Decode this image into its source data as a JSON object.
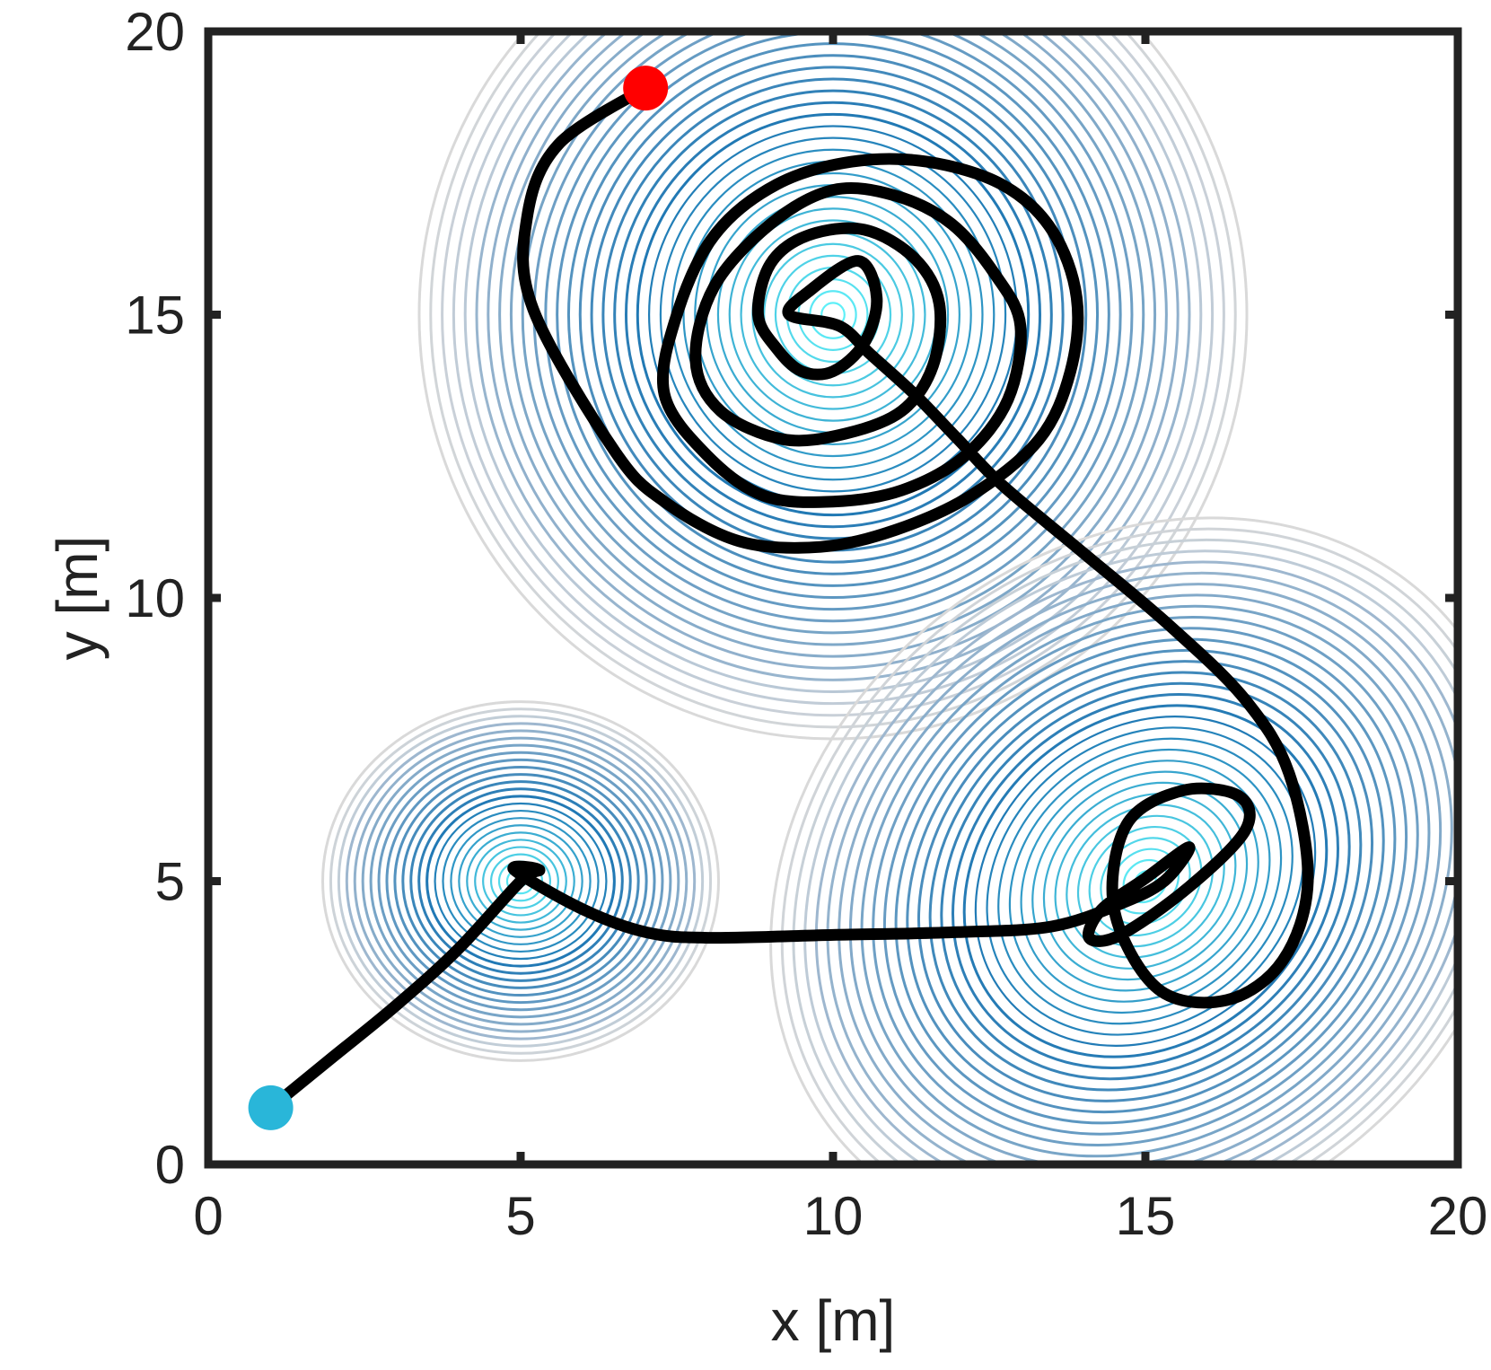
{
  "chart_data": {
    "type": "contour",
    "title": "",
    "xlabel": "x [m]",
    "ylabel": "y [m]",
    "xlim": [
      0,
      20
    ],
    "ylim": [
      0,
      20
    ],
    "x_ticks": [
      "0",
      "5",
      "10",
      "15",
      "20"
    ],
    "y_ticks": [
      "0",
      "5",
      "10",
      "15",
      "20"
    ],
    "grid": false,
    "legend": "none",
    "density_sources": [
      {
        "name": "",
        "center": [
          5,
          5
        ],
        "spread": [
          1.1,
          1.1
        ],
        "correlation": 0,
        "weight": 0.45
      },
      {
        "name": "",
        "center": [
          10,
          15
        ],
        "spread": [
          2.3,
          2.6
        ],
        "correlation": 0,
        "weight": 1.0
      },
      {
        "name": "",
        "center": [
          15,
          5
        ],
        "spread": [
          2.0,
          2.2
        ],
        "correlation": 0.45,
        "weight": 0.85
      }
    ],
    "trajectory": {
      "x": [
        1.0,
        2.0,
        3.0,
        4.0,
        5.0,
        5.3,
        4.9,
        6.0,
        7.0,
        8.0,
        10.0,
        12.0,
        13.5,
        14.6,
        15.3,
        15.7,
        15.0,
        14.3,
        14.1,
        14.6,
        15.7,
        16.6,
        16.5,
        15.6,
        14.7,
        14.5,
        15.2,
        16.3,
        17.2,
        17.6,
        17.3,
        16.6,
        15.4,
        14.0,
        12.7,
        12.0,
        11.3,
        10.6,
        10.1,
        9.3,
        9.6,
        10.4,
        10.7,
        10.5,
        10.0,
        9.5,
        9.1,
        8.8,
        9.0,
        9.6,
        10.5,
        11.3,
        11.7,
        11.6,
        11.1,
        10.2,
        9.2,
        8.2,
        7.8,
        8.1,
        9.0,
        10.0,
        11.0,
        11.9,
        12.6,
        13.0,
        12.8,
        12.1,
        11.1,
        10.0,
        8.9,
        8.0,
        7.3,
        7.5,
        8.1,
        9.1,
        10.3,
        11.5,
        12.7,
        13.5,
        13.9,
        13.8,
        13.3,
        12.2,
        11.0,
        9.8,
        8.5,
        7.3,
        6.5,
        5.2,
        5.1,
        5.6,
        7.0
      ],
      "y": [
        1.0,
        1.9,
        2.8,
        3.8,
        5.0,
        5.2,
        5.2,
        4.5,
        4.1,
        4.0,
        4.05,
        4.1,
        4.2,
        4.6,
        5.0,
        5.6,
        5.05,
        4.5,
        4.0,
        4.05,
        4.9,
        5.9,
        6.5,
        6.6,
        6.0,
        4.5,
        3.1,
        2.9,
        3.6,
        5.0,
        6.9,
        8.2,
        9.5,
        10.8,
        12.0,
        12.8,
        13.6,
        14.3,
        14.8,
        15.0,
        15.4,
        15.95,
        15.3,
        14.5,
        14.0,
        14.0,
        14.4,
        15.0,
        15.9,
        16.4,
        16.5,
        16.0,
        15.2,
        14.1,
        13.3,
        12.9,
        12.8,
        13.3,
        14.2,
        15.5,
        16.6,
        17.2,
        17.1,
        16.6,
        15.7,
        14.8,
        13.5,
        12.5,
        11.9,
        11.7,
        11.8,
        12.5,
        13.6,
        15.0,
        16.4,
        17.3,
        17.7,
        17.7,
        17.3,
        16.5,
        15.3,
        14.0,
        12.8,
        11.8,
        11.2,
        10.9,
        11.0,
        11.7,
        12.6,
        15.1,
        16.7,
        18.0,
        19.0
      ]
    },
    "start_point": {
      "x": 1.0,
      "y": 1.0
    },
    "end_point": {
      "x": 7.0,
      "y": 19.0
    },
    "colors": {
      "trajectory": "#000000",
      "start_marker": "#29b6d9",
      "end_marker": "#ff0000",
      "contour_outer": "#d9d9d9",
      "contour_mid": "#1f78b4",
      "contour_inner": "#5ff0f8",
      "axis": "#222222"
    }
  }
}
